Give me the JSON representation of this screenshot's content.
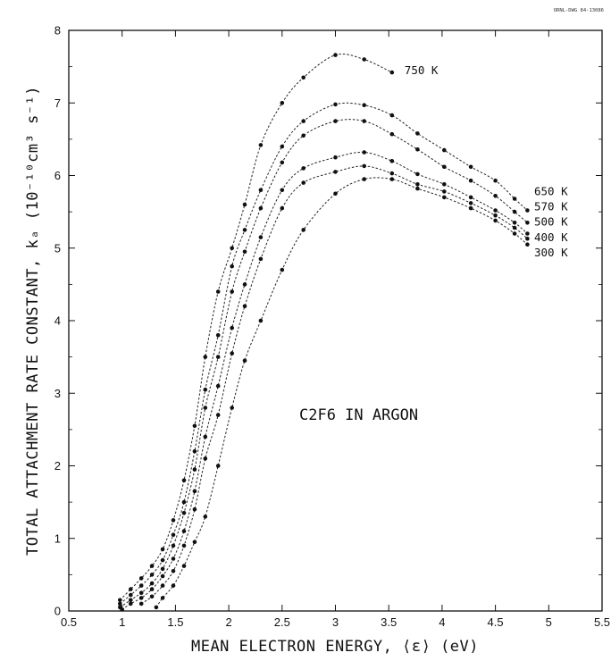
{
  "drawing_id": "ORNL-DWG 84-13086",
  "chart_data": {
    "type": "line",
    "xlabel": "MEAN ELECTRON ENERGY, ⟨ε⟩ (eV)",
    "ylabel": "TOTAL ATTACHMENT RATE CONSTANT, kₐ (10⁻¹⁰cm³ s⁻¹)",
    "xlim": [
      0.5,
      5.5
    ],
    "ylim": [
      0,
      8
    ],
    "xticks": [
      "0.5",
      "1",
      "1.5",
      "2",
      "2.5",
      "3",
      "3.5",
      "4",
      "4.5",
      "5",
      "5.5"
    ],
    "yticks": [
      "0",
      "1",
      "2",
      "3",
      "4",
      "5",
      "6",
      "7",
      "8"
    ],
    "grid": false,
    "annotation": "C2F6 IN ARGON",
    "series": [
      {
        "name": "750 K",
        "x": [
          0.98,
          1.08,
          1.18,
          1.28,
          1.38,
          1.48,
          1.58,
          1.68,
          1.78,
          1.9,
          2.03,
          2.15,
          2.3,
          2.5,
          2.7,
          3.0,
          3.27,
          3.53
        ],
        "y": [
          0.15,
          0.3,
          0.45,
          0.62,
          0.85,
          1.25,
          1.8,
          2.55,
          3.5,
          4.4,
          5.0,
          5.6,
          6.42,
          7.0,
          7.35,
          7.66,
          7.6,
          7.42
        ]
      },
      {
        "name": "650 K",
        "x": [
          0.98,
          1.08,
          1.18,
          1.28,
          1.38,
          1.48,
          1.58,
          1.68,
          1.78,
          1.9,
          2.03,
          2.15,
          2.3,
          2.5,
          2.7,
          3.0,
          3.27,
          3.53,
          3.77,
          4.02,
          4.27,
          4.5,
          4.68,
          4.8
        ],
        "y": [
          0.1,
          0.22,
          0.35,
          0.5,
          0.7,
          1.05,
          1.5,
          2.2,
          3.05,
          3.8,
          4.75,
          5.25,
          5.8,
          6.4,
          6.75,
          6.98,
          6.97,
          6.83,
          6.58,
          6.35,
          6.12,
          5.93,
          5.68,
          5.52
        ]
      },
      {
        "name": "570 K",
        "x": [
          0.98,
          1.08,
          1.18,
          1.28,
          1.38,
          1.48,
          1.58,
          1.68,
          1.78,
          1.9,
          2.03,
          2.15,
          2.3,
          2.5,
          2.7,
          3.0,
          3.27,
          3.53,
          3.77,
          4.02,
          4.27,
          4.5,
          4.68,
          4.8
        ],
        "y": [
          0.05,
          0.15,
          0.25,
          0.38,
          0.58,
          0.9,
          1.35,
          1.95,
          2.8,
          3.5,
          4.4,
          4.95,
          5.55,
          6.18,
          6.55,
          6.75,
          6.75,
          6.57,
          6.36,
          6.12,
          5.93,
          5.72,
          5.5,
          5.35
        ]
      },
      {
        "name": "500 K",
        "x": [
          1.0,
          1.08,
          1.18,
          1.28,
          1.38,
          1.48,
          1.58,
          1.68,
          1.78,
          1.9,
          2.03,
          2.15,
          2.3,
          2.5,
          2.7,
          3.0,
          3.27,
          3.53,
          3.77,
          4.02,
          4.27,
          4.5,
          4.68,
          4.8
        ],
        "y": [
          0.02,
          0.1,
          0.18,
          0.3,
          0.48,
          0.72,
          1.1,
          1.65,
          2.4,
          3.1,
          3.9,
          4.5,
          5.15,
          5.8,
          6.1,
          6.25,
          6.32,
          6.2,
          6.02,
          5.88,
          5.7,
          5.52,
          5.35,
          5.2
        ]
      },
      {
        "name": "400 K",
        "x": [
          1.18,
          1.28,
          1.38,
          1.48,
          1.58,
          1.68,
          1.78,
          1.9,
          2.03,
          2.15,
          2.3,
          2.5,
          2.7,
          3.0,
          3.27,
          3.53,
          3.77,
          4.02,
          4.27,
          4.5,
          4.68,
          4.8
        ],
        "y": [
          0.1,
          0.2,
          0.35,
          0.55,
          0.9,
          1.4,
          2.1,
          2.7,
          3.55,
          4.2,
          4.85,
          5.55,
          5.9,
          6.05,
          6.13,
          6.03,
          5.88,
          5.78,
          5.62,
          5.45,
          5.28,
          5.13
        ]
      },
      {
        "name": "300 K",
        "x": [
          1.32,
          1.38,
          1.48,
          1.58,
          1.68,
          1.78,
          1.9,
          2.03,
          2.15,
          2.3,
          2.5,
          2.7,
          3.0,
          3.27,
          3.53,
          3.77,
          4.02,
          4.27,
          4.5,
          4.68,
          4.8
        ],
        "y": [
          0.05,
          0.18,
          0.35,
          0.62,
          0.95,
          1.3,
          2.0,
          2.8,
          3.45,
          4.0,
          4.7,
          5.25,
          5.75,
          5.95,
          5.95,
          5.82,
          5.7,
          5.55,
          5.38,
          5.2,
          5.05
        ]
      }
    ]
  }
}
